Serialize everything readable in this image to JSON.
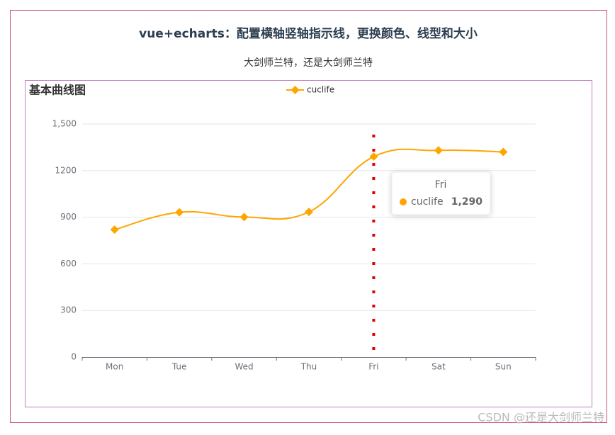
{
  "header": {
    "title": "vue+echarts：配置横轴竖轴指示线，更换颜色、线型和大小",
    "subtitle": "大剑师兰特，还是大剑师兰特"
  },
  "watermark": "CSDN @还是大剑师兰特",
  "chart_data": {
    "type": "line",
    "title": "基本曲线图",
    "categories": [
      "Mon",
      "Tue",
      "Wed",
      "Thu",
      "Fri",
      "Sat",
      "Sun"
    ],
    "series": [
      {
        "name": "cuclife",
        "color": "#ffa500",
        "values": [
          820,
          932,
          901,
          934,
          1290,
          1330,
          1320
        ]
      }
    ],
    "ylim": [
      0,
      1500
    ],
    "yticks": [
      0,
      300,
      600,
      900,
      1200,
      {
        "value": 1500,
        "label": "1,500"
      }
    ],
    "grid": true,
    "smooth": true,
    "legend": "top",
    "tooltip": {
      "category": "Fri",
      "value_label": "1,290"
    }
  }
}
